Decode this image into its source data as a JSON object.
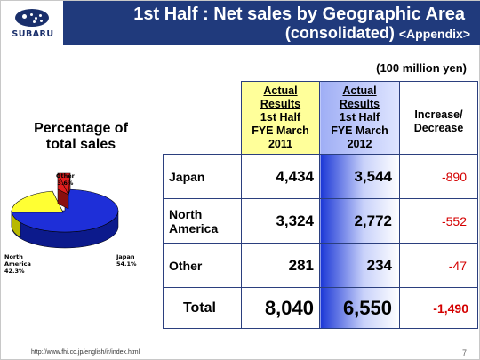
{
  "logo": {
    "text": "SUBARU"
  },
  "header": {
    "title": "1st Half : Net sales by Geographic Area",
    "subtitle": "(consolidated)",
    "subtitle_tag": "<Appendix>"
  },
  "unit": "(100 million yen)",
  "pie": {
    "title_line1": "Percentage of",
    "title_line2": "total sales",
    "slices": [
      {
        "label": "Japan",
        "value_label": "54.1%",
        "percent": 54.1,
        "color": "#1e2fd8"
      },
      {
        "label": "North America",
        "label_line1": "North",
        "label_line2": "America",
        "value_label": "42.3%",
        "percent": 42.3,
        "color": "#ffff33"
      },
      {
        "label": "Other",
        "value_label": "3.6%",
        "percent": 3.6,
        "color": "#e01e1e"
      }
    ]
  },
  "table": {
    "columns": [
      {
        "lines": [
          "Actual",
          "Results"
        ],
        "rest": [
          "1st Half",
          "FYE March",
          "2011"
        ]
      },
      {
        "lines": [
          "Actual",
          "Results"
        ],
        "rest": [
          "1st Half",
          "FYE March",
          "2012"
        ]
      },
      {
        "lines": [
          "Increase/",
          "Decrease"
        ]
      }
    ],
    "rows": [
      {
        "region": "Japan",
        "fy2011": "4,434",
        "fy2012": "3,544",
        "change": "-890"
      },
      {
        "region_line1": "North",
        "region_line2": "America",
        "fy2011": "3,324",
        "fy2012": "2,772",
        "change": "-552"
      },
      {
        "region": "Other",
        "fy2011": "281",
        "fy2012": "234",
        "change": "-47"
      }
    ],
    "total": {
      "label": "Total",
      "fy2011": "8,040",
      "fy2012": "6,550",
      "change": "-1,490"
    }
  },
  "footer": {
    "url": "http://www.fhi.co.jp/english/ir/index.html",
    "page": "7"
  }
}
